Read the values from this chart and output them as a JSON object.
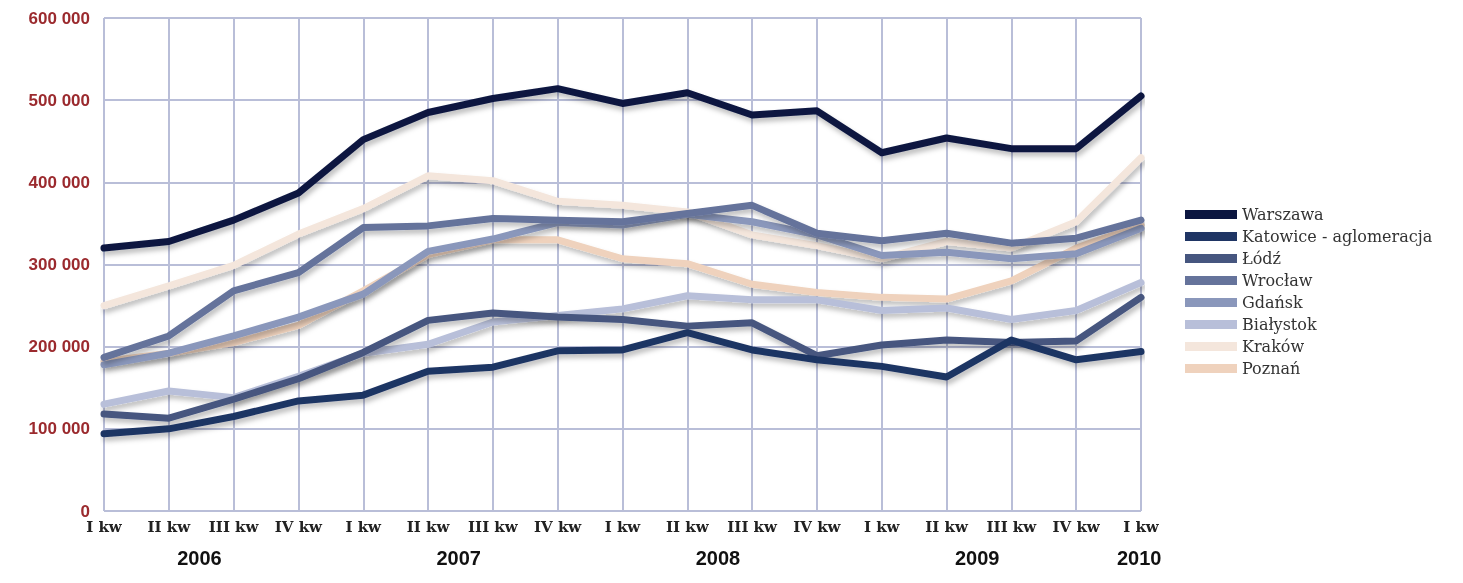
{
  "chart_data": {
    "type": "line",
    "categories": [
      "I kw",
      "II kw",
      "III kw",
      "IV kw",
      "I kw",
      "II kw",
      "III kw",
      "IV kw",
      "I kw",
      "II kw",
      "III kw",
      "IV kw",
      "I kw",
      "II kw",
      "III kw",
      "IV kw",
      "I kw"
    ],
    "series": [
      {
        "name": "Warszawa",
        "color": "#0b1640",
        "values": [
          320000,
          328000,
          354000,
          387000,
          452000,
          485000,
          502000,
          514000,
          496000,
          509000,
          482000,
          487000,
          436000,
          454000,
          441000,
          441000,
          505000
        ]
      },
      {
        "name": "Katowice - aglomeracja",
        "color": "#1f3564",
        "values": [
          94000,
          100000,
          115000,
          134000,
          141000,
          170000,
          175000,
          195000,
          196000,
          217000,
          196000,
          184000,
          176000,
          163000,
          208000,
          184000,
          194000
        ]
      },
      {
        "name": "Łódź",
        "color": "#46567f",
        "values": [
          118000,
          113000,
          136000,
          161000,
          193000,
          232000,
          241000,
          236000,
          233000,
          225000,
          229000,
          189000,
          202000,
          208000,
          205000,
          207000,
          260000
        ]
      },
      {
        "name": "Wrocław",
        "color": "#65739b",
        "values": [
          187000,
          213000,
          268000,
          290000,
          345000,
          347000,
          356000,
          354000,
          352000,
          362000,
          372000,
          338000,
          329000,
          338000,
          326000,
          332000,
          354000
        ]
      },
      {
        "name": "Gdańsk",
        "color": "#8a97bb",
        "values": [
          178000,
          192000,
          213000,
          236000,
          264000,
          316000,
          331000,
          351000,
          348000,
          361000,
          352000,
          336000,
          311000,
          315000,
          307000,
          313000,
          344000
        ]
      },
      {
        "name": "Białystok",
        "color": "#b8bfd9",
        "values": [
          130000,
          146000,
          138000,
          164000,
          192000,
          203000,
          230000,
          238000,
          246000,
          262000,
          257000,
          257000,
          244000,
          247000,
          233000,
          244000,
          278000
        ]
      },
      {
        "name": "Kraków",
        "color": "#f4e6dc",
        "values": [
          250000,
          274000,
          299000,
          337000,
          368000,
          408000,
          402000,
          377000,
          372000,
          364000,
          336000,
          323000,
          307000,
          328000,
          320000,
          352000,
          430000
        ]
      },
      {
        "name": "Poznań",
        "color": "#efd2bd",
        "values": [
          182000,
          192000,
          205000,
          226000,
          268000,
          312000,
          330000,
          330000,
          307000,
          301000,
          276000,
          266000,
          260000,
          258000,
          280000,
          320000,
          348000
        ]
      }
    ],
    "ylim": [
      0,
      600000
    ],
    "yticks": [
      {
        "value": 0,
        "label": "0"
      },
      {
        "value": 100000,
        "label": "100 000"
      },
      {
        "value": 200000,
        "label": "200 000"
      },
      {
        "value": 300000,
        "label": "300 000"
      },
      {
        "value": 400000,
        "label": "400 000"
      },
      {
        "value": 500000,
        "label": "500 000"
      },
      {
        "value": 600000,
        "label": "600 000"
      }
    ],
    "annotations": [
      "2006",
      "2007",
      "2008",
      "2009",
      "2010"
    ],
    "grid": true,
    "legend": "right",
    "marker": "none",
    "line_style": "solid"
  }
}
